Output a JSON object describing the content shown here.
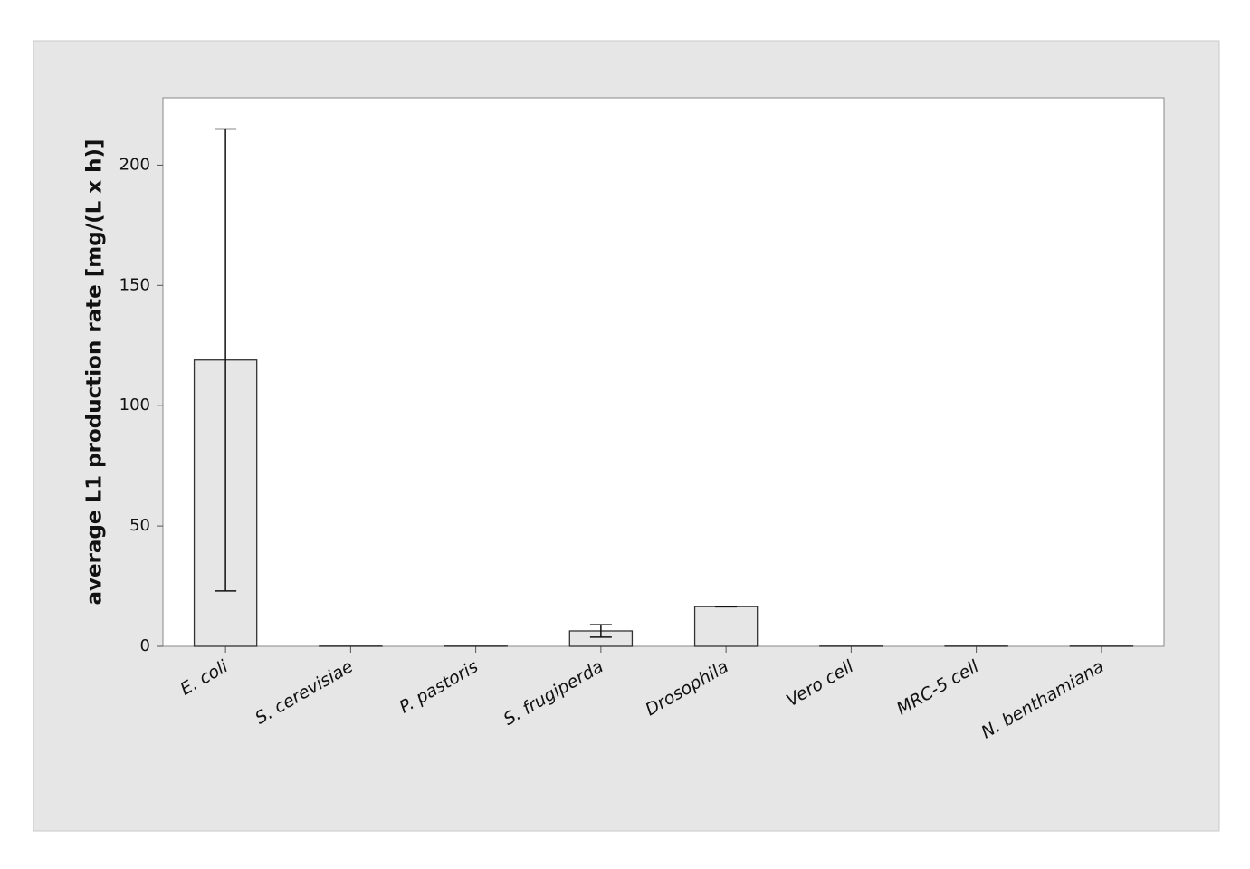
{
  "chart_data": {
    "type": "bar",
    "y_label": "average L1 production rate [mg/(L x h)]",
    "categories": [
      "E. coli",
      "S. cerevisiae",
      "P. pastoris",
      "S. frugiperda",
      "Drosophila",
      "Vero cell",
      "MRC-5 cell",
      "N. benthamiana"
    ],
    "values": [
      119,
      0.1,
      0.1,
      6.4,
      16.5,
      0.1,
      0.1,
      0.1
    ],
    "errors": [
      96,
      null,
      null,
      2.6,
      0.1,
      null,
      null,
      null
    ],
    "color": "#e6e6e6",
    "ylim": [
      0,
      228
    ],
    "yticks": [
      0,
      50,
      100,
      150,
      200
    ],
    "grid": false
  }
}
